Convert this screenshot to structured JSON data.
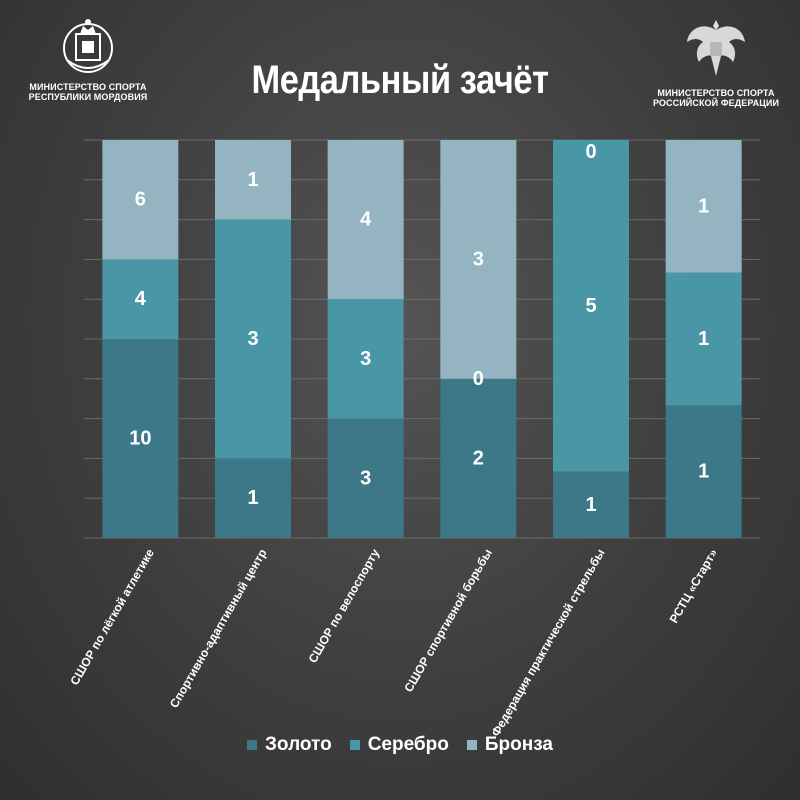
{
  "header": {
    "left_logo_lines": [
      "МИНИСТЕРСТВО СПОРТА",
      "РЕСПУБЛИКИ МОРДОВИЯ"
    ],
    "right_logo_lines": [
      "МИНИСТЕРСТВО СПОРТА",
      "РОССИЙСКОЙ ФЕДЕРАЦИИ"
    ]
  },
  "colors": {
    "gold": "#3d7889",
    "silver": "#4896a6",
    "bronze": "#93b4c0",
    "grid": "#6a6a6a"
  },
  "chart_data": {
    "type": "bar",
    "stacked": true,
    "title": "Медальный зачёт",
    "categories": [
      "СШОР по лёгкой атлетике",
      "Спортивно-адаптивный центр",
      "СШОР по велоспорту",
      "СШОР спортивной борьбы",
      "Федерация практической стрельбы",
      "РСТЦ «Старт»"
    ],
    "series": [
      {
        "name": "Золото",
        "values": [
          10,
          1,
          3,
          2,
          1,
          1
        ],
        "color": "#3d7889"
      },
      {
        "name": "Серебро",
        "values": [
          4,
          3,
          3,
          0,
          5,
          1
        ],
        "color": "#4896a6"
      },
      {
        "name": "Бронза",
        "values": [
          6,
          1,
          4,
          3,
          0,
          1
        ],
        "color": "#93b4c0"
      }
    ],
    "normalized": true,
    "ylim": [
      0,
      100
    ],
    "grid": true,
    "legend": "bottom",
    "xlabel": "",
    "ylabel": ""
  }
}
